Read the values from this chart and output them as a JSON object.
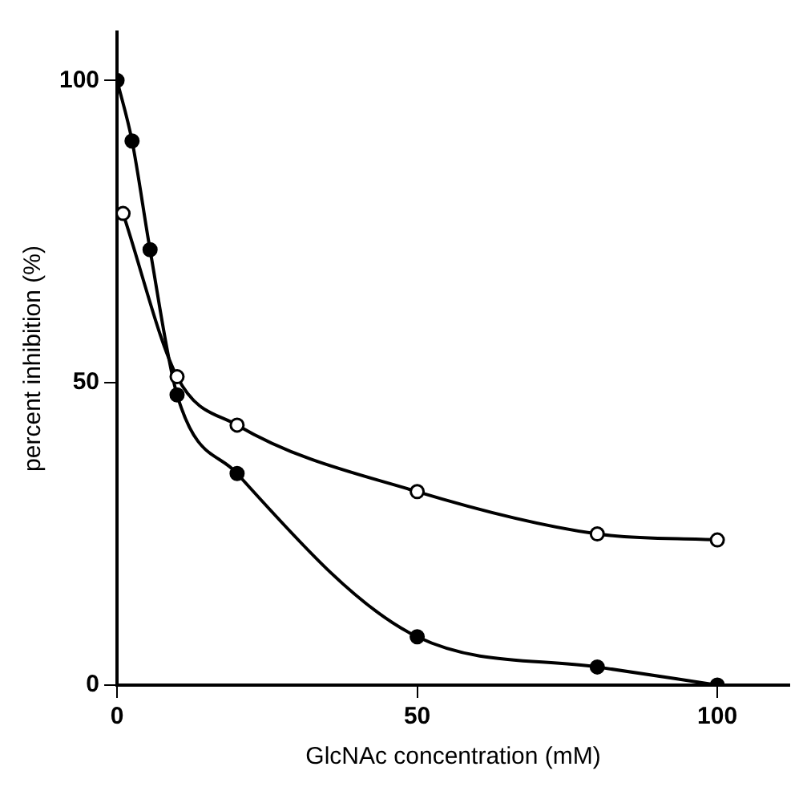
{
  "chart_data": {
    "type": "line",
    "xlabel": "GlcNAc concentration (mM)",
    "ylabel": "percent inhibition (%)",
    "xlim": [
      0,
      112
    ],
    "xticks": [
      0,
      50,
      100
    ],
    "ylim": [
      0,
      108
    ],
    "yticks": [
      0,
      50,
      100
    ],
    "grid": false,
    "legend": false,
    "marker": "circle",
    "line_style": "solid",
    "series": [
      {
        "color": "#000000",
        "x": [
          1,
          10,
          20,
          50,
          80,
          100
        ],
        "values": [
          78,
          51,
          43,
          32,
          25,
          24
        ]
      },
      {
        "color": "#000000",
        "x": [
          0,
          2.5,
          5.5,
          10,
          20,
          50,
          80,
          100
        ],
        "values": [
          100,
          90,
          72,
          48,
          35,
          8,
          3,
          0
        ]
      }
    ]
  }
}
